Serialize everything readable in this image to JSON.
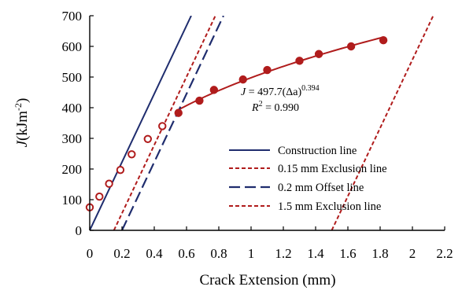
{
  "chart_data": {
    "type": "scatter",
    "xlabel": "Crack Extension (mm)",
    "ylabel_symbol": "J",
    "ylabel_unit": "(kJm",
    "ylabel_exp": "-2",
    "ylabel_close": ")",
    "xlim": [
      0,
      2.2
    ],
    "ylim": [
      0,
      700
    ],
    "xticks": [
      0,
      0.2,
      0.4,
      0.6,
      0.8,
      1,
      1.2,
      1.4,
      1.6,
      1.8,
      2,
      2.2
    ],
    "xtick_labels": [
      "0",
      "0.2",
      "0.4",
      "0.6",
      "0.8",
      "1",
      "1.2",
      "1.4",
      "1.6",
      "1.8",
      "2",
      "2.2"
    ],
    "yticks": [
      0,
      100,
      200,
      300,
      400,
      500,
      600,
      700
    ],
    "ytick_labels": [
      "0",
      "100",
      "200",
      "300",
      "400",
      "500",
      "600",
      "700"
    ],
    "grid": false,
    "legend_position": "bottom-right",
    "series": [
      {
        "kind": "points",
        "marker": "open-circle",
        "color": "#b01c1c",
        "x": [
          0.0,
          0.06,
          0.12,
          0.19,
          0.26,
          0.36,
          0.45
        ],
        "y": [
          75,
          110,
          152,
          197,
          248,
          298,
          340
        ]
      },
      {
        "kind": "points",
        "marker": "filled-circle",
        "color": "#b01c1c",
        "x": [
          0.55,
          0.68,
          0.77,
          0.95,
          1.1,
          1.3,
          1.42,
          1.62,
          1.82
        ],
        "y": [
          383,
          423,
          458,
          492,
          523,
          553,
          575,
          600,
          620
        ]
      },
      {
        "kind": "power-fit",
        "color": "#b01c1c",
        "coef": 497.7,
        "exp": 0.394,
        "x_range": [
          0.55,
          1.82
        ]
      },
      {
        "name": "Construction line",
        "kind": "line",
        "style": "solid",
        "color": "#1f2d6e",
        "x": [
          0,
          0.629
        ],
        "y": [
          0,
          700
        ]
      },
      {
        "name": "0.15 mm Exclusion line",
        "kind": "line",
        "style": "short-dash",
        "color": "#b01c1c",
        "x": [
          0.15,
          0.779
        ],
        "y": [
          0,
          700
        ]
      },
      {
        "name": "0.2 mm Offset line",
        "kind": "line",
        "style": "long-dash",
        "color": "#1f2d6e",
        "x": [
          0.2,
          0.829
        ],
        "y": [
          0,
          700
        ]
      },
      {
        "name": "1.5 mm Exclusion line",
        "kind": "line",
        "style": "short-dash",
        "color": "#b01c1c",
        "x": [
          1.5,
          2.129
        ],
        "y": [
          0,
          700
        ]
      }
    ],
    "annotations": {
      "fit_lhs": "J",
      "fit_rhs": " = 497.7(Δa)",
      "fit_exp": "0.394",
      "r2_lhs": "R",
      "r2_sup": "2",
      "r2_rhs": " = 0.990"
    }
  }
}
